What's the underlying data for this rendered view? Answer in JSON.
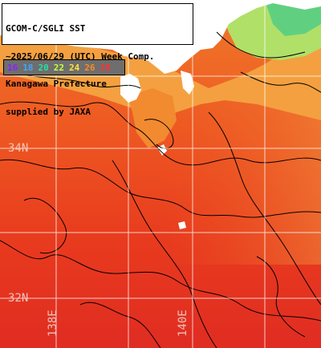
{
  "title_box": {
    "lines": [
      "GCOM-C/SGLI SST",
      "~2025/06/29 (UTC) Week Comp.",
      "Kanagawa Prefecture",
      "supplied by JAXA"
    ]
  },
  "legend": {
    "items": [
      {
        "label": "16",
        "color": "#8a22ff"
      },
      {
        "label": "18",
        "color": "#3fa8ff"
      },
      {
        "label": "20",
        "color": "#28e0a0"
      },
      {
        "label": "22",
        "color": "#c8ff3c"
      },
      {
        "label": "24",
        "color": "#ffe23a"
      },
      {
        "label": "26",
        "color": "#ff8a1e"
      },
      {
        "label": "28",
        "color": "#ff3030"
      }
    ]
  },
  "grid_labels": {
    "lat_34": "34N",
    "lat_32": "32N",
    "lon_138": "138E",
    "lon_140": "140E"
  },
  "colors": {
    "land": "#ffffff",
    "sea_warm": "#e8321e",
    "sea_mid": "#f06a1e",
    "sea_cool": "#f4a040",
    "coast_cool": "#b0e068",
    "coast_cooler": "#60d080",
    "contour": "#000000",
    "grid": "#ffffff"
  }
}
